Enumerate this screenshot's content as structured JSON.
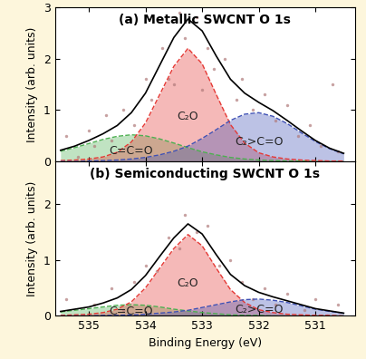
{
  "chart_data": [
    {
      "type": "line",
      "title": "(a) Metallic SWCNT O 1s",
      "ylabel": "Intensity (arb. units)",
      "xlim": [
        535.6,
        530.3
      ],
      "xticks": [
        535,
        534,
        533,
        532,
        531
      ],
      "ylim": [
        0,
        3
      ],
      "yticks": [
        0,
        1,
        2,
        3
      ],
      "tick_labels": "y",
      "grid": false,
      "x": [
        535.5,
        535.25,
        535.0,
        534.75,
        534.5,
        534.25,
        534.0,
        533.75,
        533.5,
        533.25,
        533.0,
        532.75,
        532.5,
        532.25,
        532.0,
        531.75,
        531.5,
        531.25,
        531.0,
        530.75,
        530.5
      ],
      "series": [
        {
          "name": "C=C=O",
          "type": "area",
          "color": "#4caf50",
          "line_style": "dashed",
          "values": [
            0.2,
            0.27,
            0.35,
            0.43,
            0.49,
            0.52,
            0.5,
            0.44,
            0.36,
            0.27,
            0.19,
            0.13,
            0.08,
            0.05,
            0.03,
            0.02,
            0.01,
            0.01,
            0,
            0,
            0
          ]
        },
        {
          "name": "C₂O",
          "type": "area",
          "color": "#e53935",
          "line_style": "dashed",
          "values": [
            0.02,
            0.03,
            0.05,
            0.09,
            0.18,
            0.38,
            0.75,
            1.3,
            1.85,
            2.2,
            1.9,
            1.3,
            0.72,
            0.36,
            0.17,
            0.09,
            0.05,
            0.03,
            0.02,
            0.01,
            0.01
          ]
        },
        {
          "name": "C₂>C=O",
          "type": "area",
          "color": "#3f51b5",
          "line_style": "dashed",
          "values": [
            0,
            0,
            0.01,
            0.02,
            0.03,
            0.05,
            0.08,
            0.13,
            0.2,
            0.3,
            0.45,
            0.62,
            0.8,
            0.92,
            0.95,
            0.88,
            0.74,
            0.56,
            0.39,
            0.25,
            0.15
          ]
        },
        {
          "type": "line",
          "color": "#000000",
          "line_style": "solid",
          "values": [
            0.22,
            0.3,
            0.41,
            0.54,
            0.7,
            0.95,
            1.33,
            1.87,
            2.41,
            2.77,
            2.54,
            2.05,
            1.6,
            1.33,
            1.15,
            0.99,
            0.8,
            0.6,
            0.41,
            0.26,
            0.16
          ]
        },
        {
          "type": "scatter",
          "color": "#b07a7a",
          "marker": "o",
          "x": [
            535.4,
            535.2,
            535.0,
            534.9,
            534.7,
            534.6,
            534.4,
            534.2,
            534.0,
            533.9,
            533.7,
            533.6,
            533.4,
            533.3,
            533.1,
            532.9,
            532.8,
            532.6,
            532.4,
            532.3,
            532.1,
            531.9,
            531.7,
            531.5,
            531.3,
            531.1,
            530.9,
            530.7,
            530.6,
            533.5,
            533.0
          ],
          "values": [
            0.5,
            0.1,
            0.6,
            0.3,
            0.9,
            0.4,
            1.0,
            0.7,
            1.6,
            1.2,
            2.2,
            1.6,
            2.9,
            2.4,
            2.8,
            2.2,
            1.8,
            2.0,
            1.2,
            1.6,
            1.0,
            1.3,
            0.8,
            1.1,
            0.5,
            0.7,
            0.3,
            1.5,
            0.2,
            1.5,
            1.4
          ]
        }
      ]
    },
    {
      "type": "line",
      "title": "(b) Semiconducting SWCNT O 1s",
      "xlabel": "Binding Energy (eV)",
      "ylabel": "Intensity (arb. units)",
      "xlim": [
        535.6,
        530.3
      ],
      "xticks": [
        535,
        534,
        533,
        532,
        531
      ],
      "ylim": [
        0,
        2.75
      ],
      "yticks": [
        0,
        1,
        2
      ],
      "grid": false,
      "x": [
        535.5,
        535.25,
        535.0,
        534.75,
        534.5,
        534.25,
        534.0,
        533.75,
        533.5,
        533.25,
        533.0,
        532.75,
        532.5,
        532.25,
        532.0,
        531.75,
        531.5,
        531.25,
        531.0,
        530.75,
        530.5
      ],
      "series": [
        {
          "name": "C=C=O",
          "type": "area",
          "color": "#4caf50",
          "line_style": "dashed",
          "values": [
            0.07,
            0.1,
            0.13,
            0.16,
            0.19,
            0.2,
            0.19,
            0.16,
            0.12,
            0.09,
            0.06,
            0.04,
            0.02,
            0.01,
            0.01,
            0,
            0,
            0,
            0,
            0,
            0
          ]
        },
        {
          "name": "C₂O",
          "type": "area",
          "color": "#e53935",
          "line_style": "dashed",
          "values": [
            0.01,
            0.02,
            0.03,
            0.06,
            0.12,
            0.25,
            0.5,
            0.85,
            1.2,
            1.45,
            1.25,
            0.85,
            0.47,
            0.24,
            0.11,
            0.06,
            0.03,
            0.02,
            0.01,
            0.01,
            0
          ]
        },
        {
          "name": "C₂>C=O",
          "type": "area",
          "color": "#3f51b5",
          "line_style": "dashed",
          "values": [
            0,
            0,
            0,
            0.01,
            0.01,
            0.02,
            0.03,
            0.05,
            0.07,
            0.1,
            0.15,
            0.2,
            0.25,
            0.29,
            0.3,
            0.28,
            0.24,
            0.18,
            0.12,
            0.08,
            0.05
          ]
        },
        {
          "type": "line",
          "color": "#000000",
          "line_style": "solid",
          "values": [
            0.08,
            0.12,
            0.16,
            0.23,
            0.32,
            0.47,
            0.72,
            1.06,
            1.39,
            1.64,
            1.46,
            1.09,
            0.74,
            0.54,
            0.42,
            0.34,
            0.27,
            0.2,
            0.13,
            0.09,
            0.05
          ]
        },
        {
          "type": "scatter",
          "color": "#b07a7a",
          "marker": "o",
          "x": [
            535.4,
            535.1,
            534.9,
            534.6,
            534.4,
            534.2,
            534.0,
            533.8,
            533.6,
            533.4,
            533.3,
            533.1,
            532.9,
            532.7,
            532.5,
            532.3,
            532.1,
            531.9,
            531.7,
            531.5,
            531.2,
            531.0,
            530.8,
            530.6
          ],
          "values": [
            0.3,
            0,
            0.2,
            0.5,
            0.1,
            0.6,
            0.9,
            0.8,
            1.4,
            1.2,
            1.8,
            1.5,
            1.6,
            0.9,
            1.0,
            0.6,
            0.3,
            0.5,
            0.2,
            0.4,
            0.1,
            0.3,
            0.0,
            0.2
          ]
        }
      ]
    }
  ]
}
